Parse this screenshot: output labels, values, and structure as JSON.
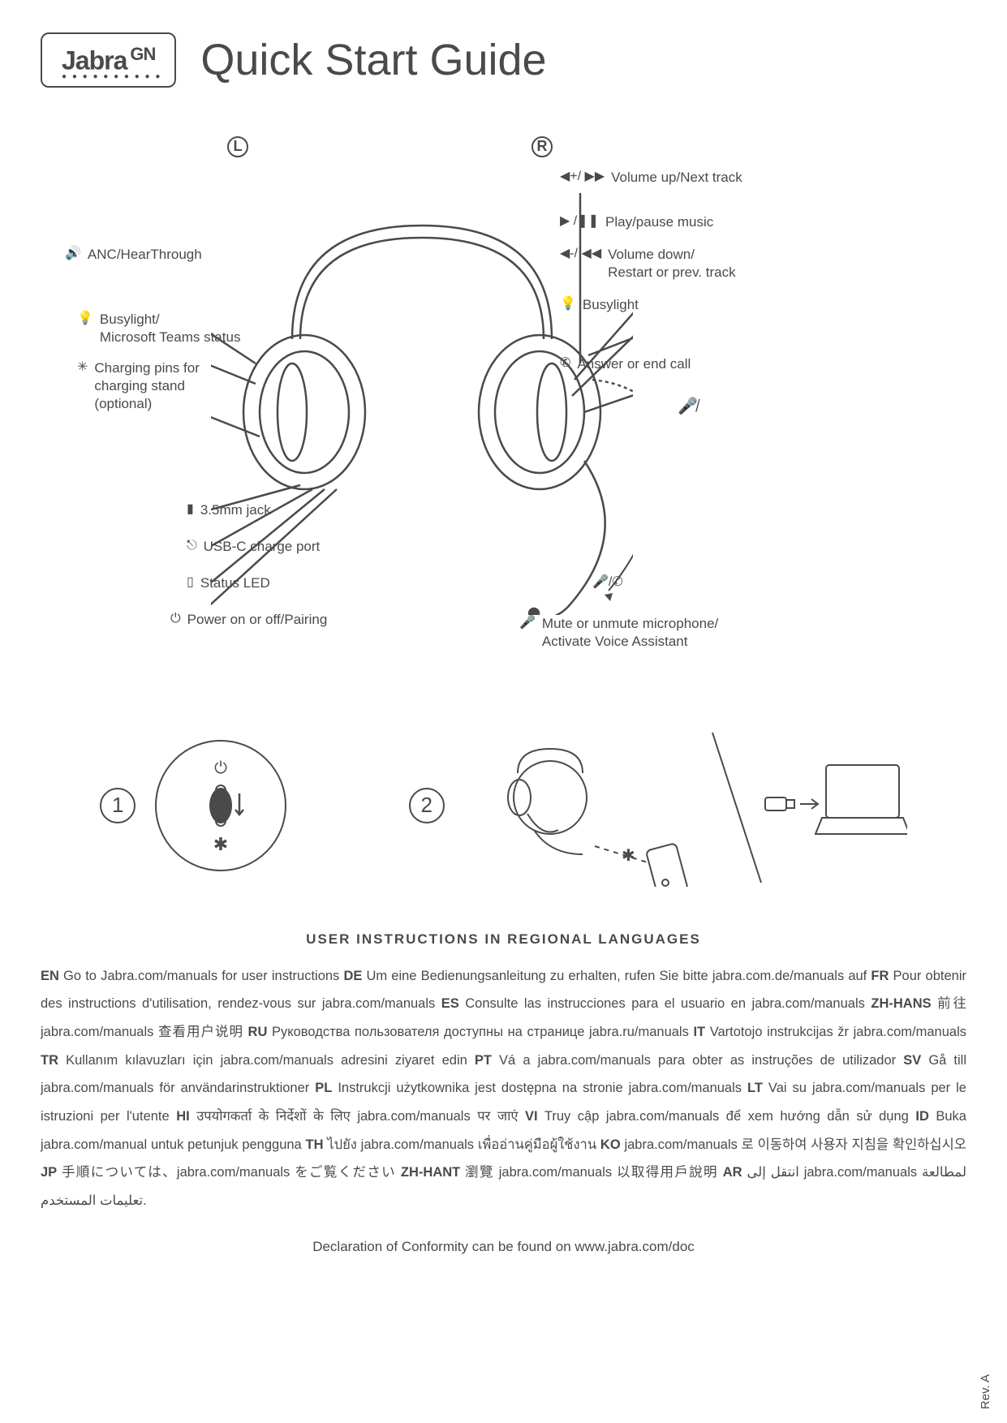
{
  "logo": {
    "brand": "Jabra",
    "suffix": "GN"
  },
  "title": "Quick Start Guide",
  "side_labels": {
    "left": "L",
    "right": "R"
  },
  "callouts": {
    "left": [
      {
        "icon": "🔊",
        "text": "ANC/HearThrough"
      },
      {
        "icon": "💡",
        "text": "Busylight/\nMicrosoft Teams status"
      },
      {
        "icon": "✳",
        "text": "Charging pins for\ncharging stand\n(optional)"
      },
      {
        "icon": "▮",
        "text": "3.5mm jack"
      },
      {
        "icon": "⎋",
        "text": "USB-C charge port"
      },
      {
        "icon": "▯",
        "text": "Status LED"
      },
      {
        "icon": "⏻",
        "text": "Power on or off/Pairing"
      }
    ],
    "right": [
      {
        "icon": "◀+/ ▶▶",
        "text": "Volume up/Next track"
      },
      {
        "icon": "▶ /❚❚",
        "text": "Play/pause music"
      },
      {
        "icon": "◀-/ ◀◀",
        "text": "Volume down/\nRestart or prev. track"
      },
      {
        "icon": "💡",
        "text": "Busylight"
      },
      {
        "icon": "✆",
        "text": "Answer or end call"
      },
      {
        "icon": "🎤/✆",
        "text": ""
      },
      {
        "icon": "🎤",
        "text": "Mute or unmute microphone/\nActivate Voice Assistant"
      }
    ]
  },
  "steps": {
    "one": "1",
    "two": "2"
  },
  "instructions_heading": "USER INSTRUCTIONS IN REGIONAL LANGUAGES",
  "instructions": [
    {
      "lang": "EN",
      "text": "Go to Jabra.com/manuals for user instructions"
    },
    {
      "lang": "DE",
      "text": "Um eine Bedienungsanleitung zu erhalten, rufen Sie bitte jabra.com.de/manuals auf"
    },
    {
      "lang": "FR",
      "text": "Pour obtenir des instructions d'utilisation, rendez-vous sur jabra.com/manuals"
    },
    {
      "lang": "ES",
      "text": "Consulte las instrucciones para el usuario en jabra.com/manuals"
    },
    {
      "lang": "ZH-HANS",
      "text": "前往 jabra.com/manuals 查看用户说明"
    },
    {
      "lang": "RU",
      "text": "Руководства пользователя доступны на странице jabra.ru/manuals"
    },
    {
      "lang": "IT",
      "text": "Vartotojo instrukcijas žr jabra.com/manuals"
    },
    {
      "lang": "TR",
      "text": "Kullanım kılavuzları için jabra.com/manuals adresini ziyaret edin"
    },
    {
      "lang": "PT",
      "text": "Vá a jabra.com/manuals para obter as instruções de utilizador"
    },
    {
      "lang": "SV",
      "text": "Gå till jabra.com/manuals för användarinstruktioner"
    },
    {
      "lang": "PL",
      "text": "Instrukcji użytkownika jest dostępna na stronie jabra.com/manuals"
    },
    {
      "lang": "LT",
      "text": "Vai su jabra.com/manuals per le istruzioni per l'utente"
    },
    {
      "lang": "HI",
      "text": "उपयोगकर्ता के निर्देशों के लिए jabra.com/manuals पर जाएं"
    },
    {
      "lang": "VI",
      "text": "Truy cập jabra.com/manuals để xem hướng dẫn sử dụng"
    },
    {
      "lang": "ID",
      "text": "Buka jabra.com/manual untuk petunjuk pengguna"
    },
    {
      "lang": "TH",
      "text": "ไปยัง jabra.com/manuals เพื่ออ่านคู่มือผู้ใช้งาน"
    },
    {
      "lang": "KO",
      "text": "jabra.com/manuals 로 이동하여 사용자 지침을 확인하십시오"
    },
    {
      "lang": "JP",
      "text": "手順については、jabra.com/manuals をご覧ください"
    },
    {
      "lang": "ZH-HANT",
      "text": "瀏覽 jabra.com/manuals 以取得用戶說明"
    },
    {
      "lang": "AR",
      "text": "انتقل إلى jabra.com/manuals لمطالعة تعليمات المستخدم."
    }
  ],
  "footer": "Declaration of Conformity can be found on www.jabra.com/doc",
  "rev": "Rev. A",
  "colors": {
    "text": "#4a4a4a",
    "bg": "#ffffff",
    "line": "#4a4a4a"
  }
}
